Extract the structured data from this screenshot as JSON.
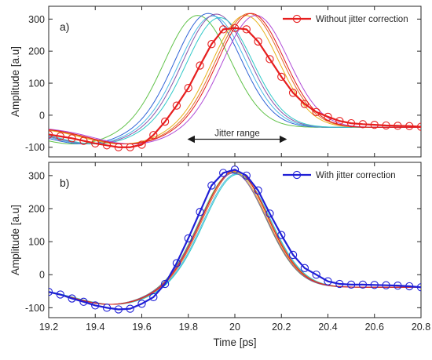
{
  "chart_data": [
    {
      "type": "line",
      "panel_label": "a)",
      "ylabel": "Amplitude [a.u]",
      "xlim": [
        19.2,
        20.8
      ],
      "ylim": [
        -130,
        340
      ],
      "yticks": [
        -100,
        0,
        100,
        200,
        300
      ],
      "ytick_labels": [
        "-100",
        "0",
        "100",
        "200",
        "300"
      ],
      "grid": false,
      "legend": {
        "position": "top-right",
        "entries": [
          "Without jitter correction"
        ]
      },
      "highlight_color": "#e61e1e",
      "pulse_shape": {
        "baseline": -38,
        "peak_height": 360,
        "peak_width": 0.14,
        "dip_center": 19.47,
        "dip_depth": 52,
        "dip_width": 0.17
      },
      "thin_traces": [
        {
          "color": "#61c24a",
          "shift": -0.16,
          "amplitude": 312
        },
        {
          "color": "#2f63d6",
          "shift": -0.115,
          "amplitude": 318
        },
        {
          "color": "#4dbbe6",
          "shift": -0.095,
          "amplitude": 310
        },
        {
          "color": "#8a54a8",
          "shift": -0.08,
          "amplitude": 316
        },
        {
          "color": "#2fc8c8",
          "shift": -0.065,
          "amplitude": 305
        },
        {
          "color": "#e8b21c",
          "shift": 0.045,
          "amplitude": 312
        },
        {
          "color": "#e3702a",
          "shift": 0.06,
          "amplitude": 318
        },
        {
          "color": "#b04ad6",
          "shift": 0.09,
          "amplitude": 312
        },
        {
          "color": "#e21b1b",
          "shift": 0.07,
          "amplitude": 318
        }
      ],
      "highlighted_series": {
        "name": "Without jitter correction",
        "x": [
          19.2,
          19.25,
          19.3,
          19.35,
          19.4,
          19.45,
          19.5,
          19.55,
          19.6,
          19.65,
          19.7,
          19.75,
          19.8,
          19.85,
          19.9,
          19.95,
          20.0,
          20.05,
          20.1,
          20.15,
          20.2,
          20.25,
          20.3,
          20.35,
          20.4,
          20.45,
          20.5,
          20.55,
          20.6,
          20.65,
          20.7,
          20.75,
          20.8
        ],
        "y": [
          -60,
          -66,
          -72,
          -80,
          -88,
          -94,
          -100,
          -100,
          -92,
          -62,
          -20,
          30,
          85,
          155,
          222,
          268,
          272,
          268,
          230,
          175,
          120,
          70,
          35,
          10,
          -5,
          -18,
          -25,
          -28,
          -30,
          -32,
          -33,
          -34,
          -36
        ]
      },
      "annotation": {
        "text": "Jitter range",
        "x_from": 19.8,
        "x_to": 20.22,
        "y": -75
      }
    },
    {
      "type": "line",
      "panel_label": "b)",
      "xlabel": "Time [ps]",
      "ylabel": "Amplitude [a.u]",
      "xlim": [
        19.2,
        20.8
      ],
      "ylim": [
        -130,
        340
      ],
      "xticks": [
        19.2,
        19.4,
        19.6,
        19.8,
        20.0,
        20.2,
        20.4,
        20.6,
        20.8
      ],
      "xtick_labels": [
        "19.2",
        "19.4",
        "19.6",
        "19.8",
        "20",
        "20.2",
        "20.4",
        "20.6",
        "20.8"
      ],
      "yticks": [
        -100,
        0,
        100,
        200,
        300
      ],
      "ytick_labels": [
        "-100",
        "0",
        "100",
        "200",
        "300"
      ],
      "grid": false,
      "legend": {
        "position": "top-right",
        "entries": [
          "With jitter correction"
        ]
      },
      "highlight_color": "#1f1fd6",
      "pulse_shape": {
        "baseline": -38,
        "peak_height": 360,
        "peak_width": 0.14,
        "dip_center": 19.47,
        "dip_depth": 52,
        "dip_width": 0.17
      },
      "thin_traces": [
        {
          "color": "#61c24a",
          "shift": -0.008,
          "amplitude": 310
        },
        {
          "color": "#4dbbe6",
          "shift": 0.008,
          "amplitude": 306
        },
        {
          "color": "#2fc8c8",
          "shift": 0.012,
          "amplitude": 304
        },
        {
          "color": "#e8b21c",
          "shift": -0.004,
          "amplitude": 312
        },
        {
          "color": "#e3702a",
          "shift": 0.004,
          "amplitude": 314
        },
        {
          "color": "#8a54a8",
          "shift": -0.006,
          "amplitude": 308
        },
        {
          "color": "#e21b1b",
          "shift": 0.0,
          "amplitude": 316
        }
      ],
      "highlighted_series": {
        "name": "With jitter correction",
        "x": [
          19.2,
          19.25,
          19.3,
          19.35,
          19.4,
          19.45,
          19.5,
          19.55,
          19.6,
          19.65,
          19.7,
          19.75,
          19.8,
          19.85,
          19.9,
          19.95,
          20.0,
          20.05,
          20.1,
          20.15,
          20.2,
          20.25,
          20.3,
          20.35,
          20.4,
          20.45,
          20.5,
          20.55,
          20.6,
          20.65,
          20.7,
          20.75,
          20.8
        ],
        "y": [
          -52,
          -60,
          -72,
          -82,
          -93,
          -100,
          -105,
          -103,
          -88,
          -68,
          -28,
          35,
          110,
          190,
          270,
          308,
          318,
          300,
          255,
          185,
          120,
          60,
          20,
          0,
          -20,
          -28,
          -30,
          -30,
          -31,
          -32,
          -33,
          -35,
          -38
        ]
      }
    }
  ]
}
